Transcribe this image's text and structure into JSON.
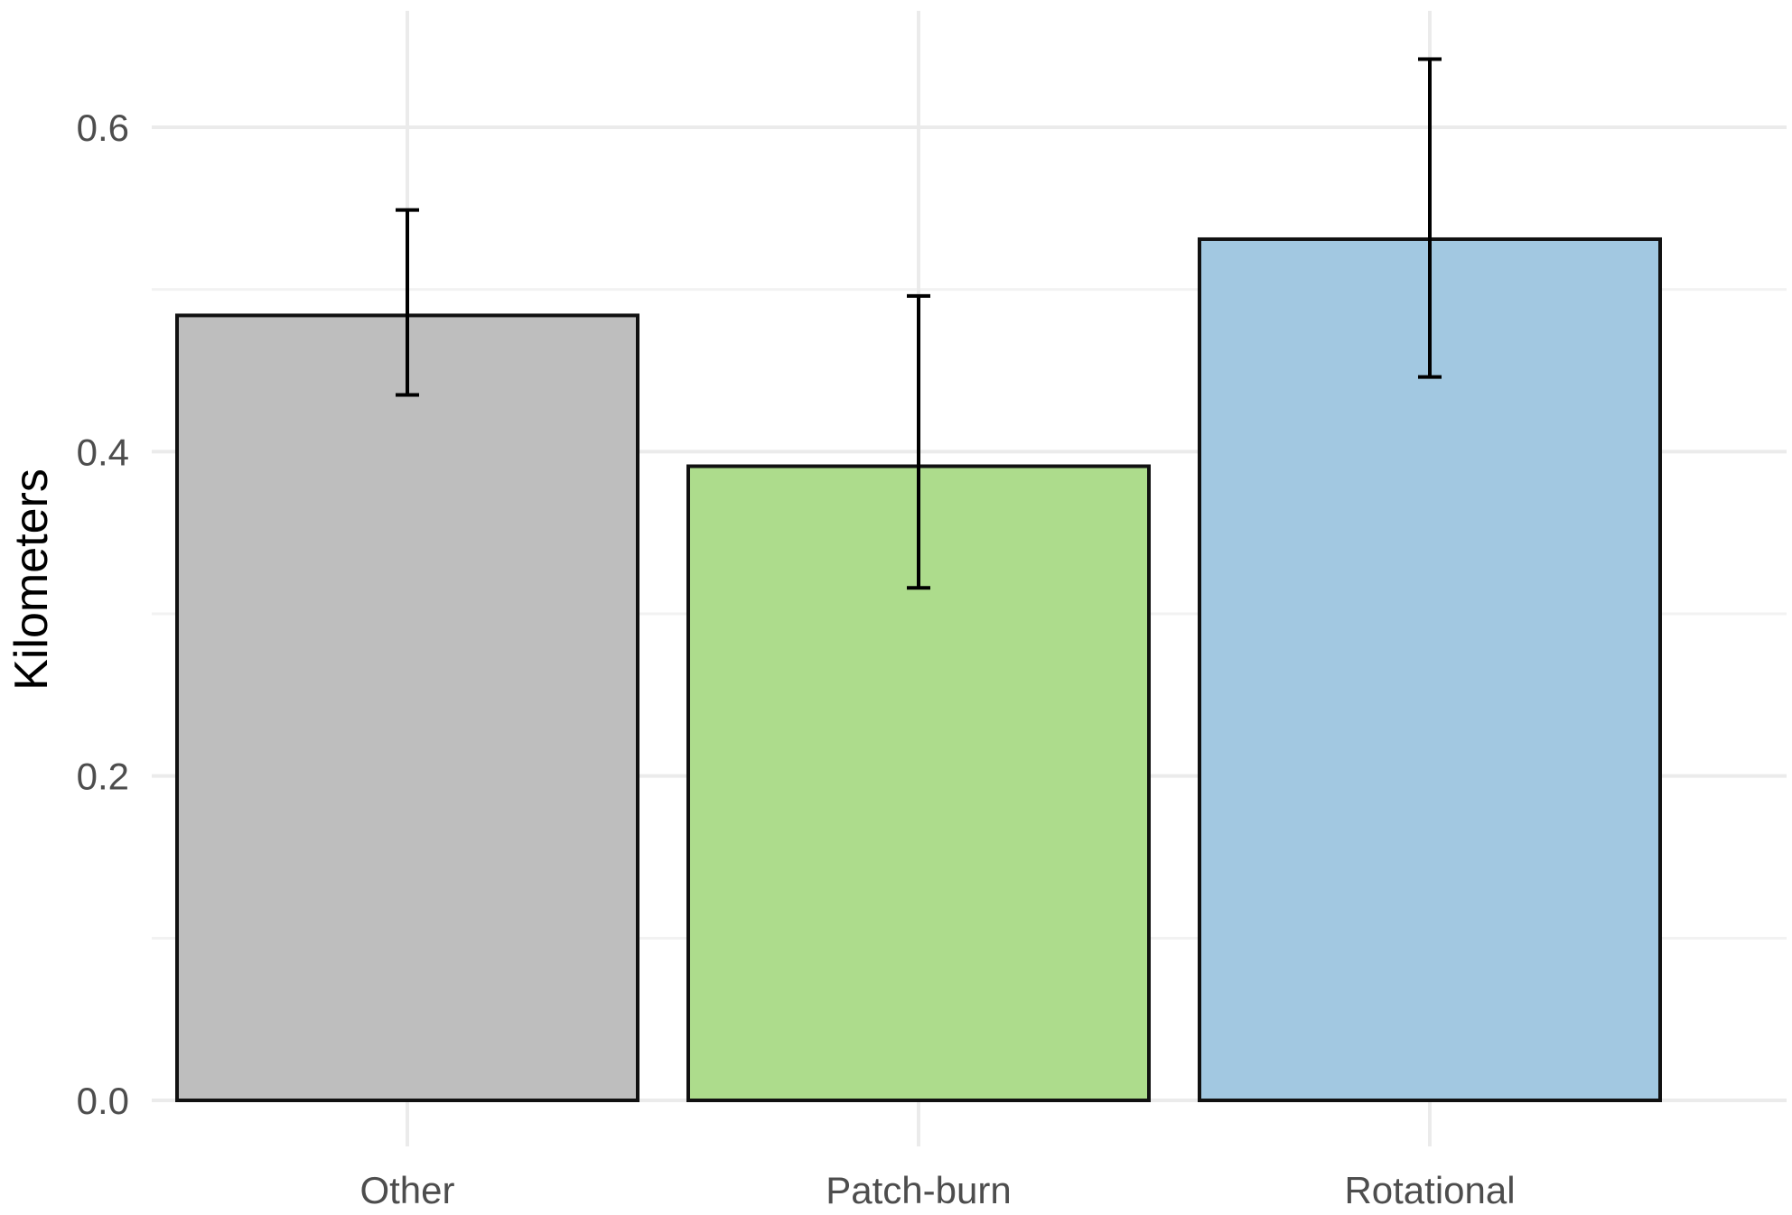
{
  "chart_data": {
    "type": "bar",
    "title": "",
    "xlabel": "",
    "ylabel": "Kilometers",
    "categories": [
      "Other",
      "Patch-burn",
      "Rotational"
    ],
    "values": [
      0.484,
      0.391,
      0.531
    ],
    "error_low": [
      0.435,
      0.316,
      0.446
    ],
    "error_high": [
      0.549,
      0.496,
      0.642
    ],
    "colors": [
      "#bebebe",
      "#addc8c",
      "#a2c8e1"
    ],
    "ylim": [
      0,
      0.665
    ],
    "yticks": [
      0.0,
      0.2,
      0.4,
      0.6
    ],
    "ytick_labels": [
      "0.0",
      "0.2",
      "0.4",
      "0.6"
    ],
    "grid": true,
    "legend": "none"
  }
}
